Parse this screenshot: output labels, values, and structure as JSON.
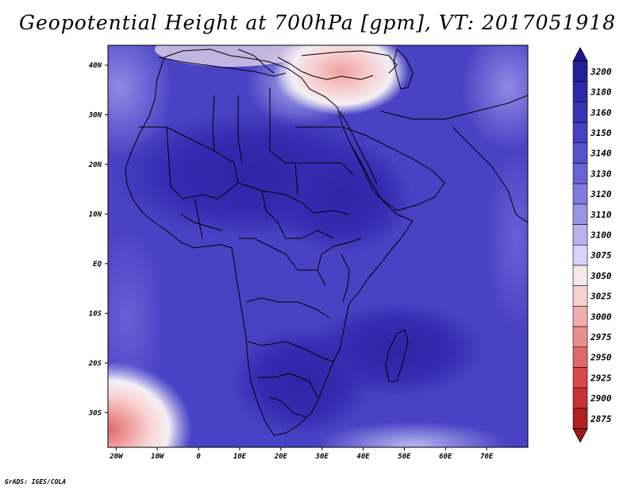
{
  "title": "Geopotential Height at 700hPa [gpm], VT: 2017051918",
  "credit": "GrADS: IGES/COLA",
  "map": {
    "lon_range": [
      -22,
      80
    ],
    "lat_range": [
      -37,
      44
    ],
    "x_ticks": [
      {
        "lon": -20,
        "label": "20W"
      },
      {
        "lon": -10,
        "label": "10W"
      },
      {
        "lon": 0,
        "label": "0"
      },
      {
        "lon": 10,
        "label": "10E"
      },
      {
        "lon": 20,
        "label": "20E"
      },
      {
        "lon": 30,
        "label": "30E"
      },
      {
        "lon": 40,
        "label": "40E"
      },
      {
        "lon": 50,
        "label": "50E"
      },
      {
        "lon": 60,
        "label": "60E"
      },
      {
        "lon": 70,
        "label": "70E"
      }
    ],
    "y_ticks": [
      {
        "lat": 40,
        "label": "40N"
      },
      {
        "lat": 30,
        "label": "30N"
      },
      {
        "lat": 20,
        "label": "20N"
      },
      {
        "lat": 10,
        "label": "10N"
      },
      {
        "lat": 0,
        "label": "EQ"
      },
      {
        "lat": -10,
        "label": "10S"
      },
      {
        "lat": -20,
        "label": "20S"
      },
      {
        "lat": -30,
        "label": "30S"
      }
    ]
  },
  "colorbar": {
    "levels": [
      "3200",
      "3180",
      "3160",
      "3150",
      "3140",
      "3130",
      "3120",
      "3110",
      "3100",
      "3075",
      "3050",
      "3025",
      "3000",
      "2975",
      "2950",
      "2925",
      "2900",
      "2875"
    ],
    "colors": [
      "#27209b",
      "#2f28a8",
      "#3a33b6",
      "#4640c2",
      "#5650cc",
      "#6963d6",
      "#7f7ade",
      "#9994e6",
      "#b5b2ef",
      "#d6d4f6",
      "#f4eaea",
      "#f6cfcf",
      "#f2aeae",
      "#e98e8e",
      "#e06868",
      "#d84848",
      "#c83232",
      "#b02020"
    ],
    "top_triangle_color": "#1f1890",
    "bottom_triangle_color": "#a01818"
  }
}
